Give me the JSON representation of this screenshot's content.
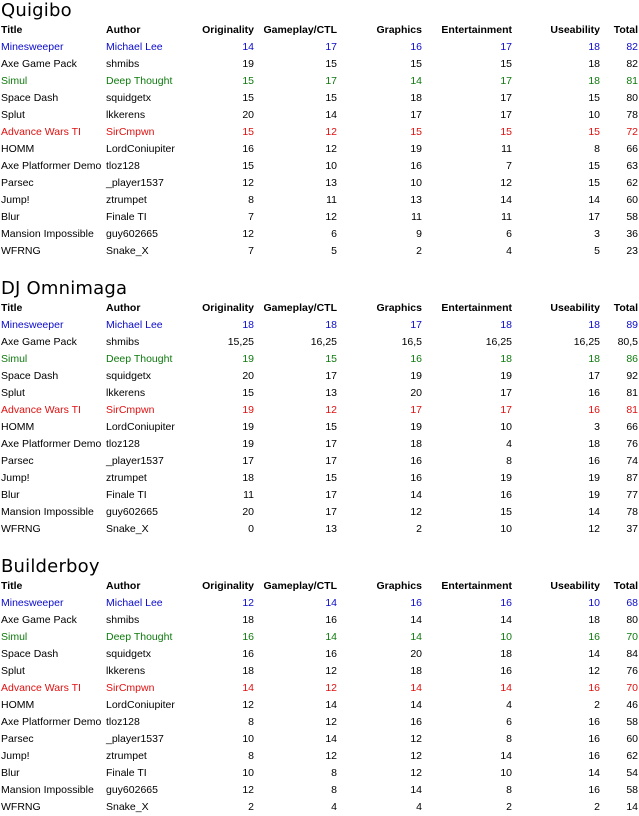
{
  "headers": {
    "title": "Title",
    "author": "Author",
    "originality": "Originality",
    "gameplay": "Gameplay/CTL",
    "graphics": "Graphics",
    "entertainment": "Entertainment",
    "useability": "Useability",
    "total": "Total"
  },
  "colors": {
    "blue": "#0a0acc",
    "green": "#0e7a0e",
    "red": "#e01010",
    "black": "#000000"
  },
  "sections": [
    {
      "judge": "Quigibo",
      "rows": [
        {
          "title": "Minesweeper",
          "author": "Michael Lee",
          "originality": "14",
          "gameplay": "17",
          "graphics": "16",
          "entertainment": "17",
          "useability": "18",
          "total": "82",
          "color": "blue"
        },
        {
          "title": "Axe Game Pack",
          "author": "shmibs",
          "originality": "19",
          "gameplay": "15",
          "graphics": "15",
          "entertainment": "15",
          "useability": "18",
          "total": "82",
          "color": "black"
        },
        {
          "title": "Simul",
          "author": "Deep Thought",
          "originality": "15",
          "gameplay": "17",
          "graphics": "14",
          "entertainment": "17",
          "useability": "18",
          "total": "81",
          "color": "green"
        },
        {
          "title": "Space Dash",
          "author": "squidgetx",
          "originality": "15",
          "gameplay": "15",
          "graphics": "18",
          "entertainment": "17",
          "useability": "15",
          "total": "80",
          "color": "black"
        },
        {
          "title": "Splut",
          "author": "lkkerens",
          "originality": "20",
          "gameplay": "14",
          "graphics": "17",
          "entertainment": "17",
          "useability": "10",
          "total": "78",
          "color": "black"
        },
        {
          "title": "Advance Wars TI",
          "author": "SirCmpwn",
          "originality": "15",
          "gameplay": "12",
          "graphics": "15",
          "entertainment": "15",
          "useability": "15",
          "total": "72",
          "color": "red"
        },
        {
          "title": "HOMM",
          "author": "LordConiupiter",
          "originality": "16",
          "gameplay": "12",
          "graphics": "19",
          "entertainment": "11",
          "useability": "8",
          "total": "66",
          "color": "black"
        },
        {
          "title": "Axe Platformer Demo",
          "author": "tloz128",
          "originality": "15",
          "gameplay": "10",
          "graphics": "16",
          "entertainment": "7",
          "useability": "15",
          "total": "63",
          "color": "black"
        },
        {
          "title": "Parsec",
          "author": "_player1537",
          "originality": "12",
          "gameplay": "13",
          "graphics": "10",
          "entertainment": "12",
          "useability": "15",
          "total": "62",
          "color": "black"
        },
        {
          "title": "Jump!",
          "author": "ztrumpet",
          "originality": "8",
          "gameplay": "11",
          "graphics": "13",
          "entertainment": "14",
          "useability": "14",
          "total": "60",
          "color": "black"
        },
        {
          "title": "Blur",
          "author": "Finale TI",
          "originality": "7",
          "gameplay": "12",
          "graphics": "11",
          "entertainment": "11",
          "useability": "17",
          "total": "58",
          "color": "black"
        },
        {
          "title": "Mansion Impossible",
          "author": "guy602665",
          "originality": "12",
          "gameplay": "6",
          "graphics": "9",
          "entertainment": "6",
          "useability": "3",
          "total": "36",
          "color": "black"
        },
        {
          "title": "WFRNG",
          "author": "Snake_X",
          "originality": "7",
          "gameplay": "5",
          "graphics": "2",
          "entertainment": "4",
          "useability": "5",
          "total": "23",
          "color": "black"
        }
      ]
    },
    {
      "judge": "DJ Omnimaga",
      "rows": [
        {
          "title": "Minesweeper",
          "author": "Michael Lee",
          "originality": "18",
          "gameplay": "18",
          "graphics": "17",
          "entertainment": "18",
          "useability": "18",
          "total": "89",
          "color": "blue"
        },
        {
          "title": "Axe Game Pack",
          "author": "shmibs",
          "originality": "15,25",
          "gameplay": "16,25",
          "graphics": "16,5",
          "entertainment": "16,25",
          "useability": "16,25",
          "total": "80,5",
          "color": "black"
        },
        {
          "title": "Simul",
          "author": "Deep Thought",
          "originality": "19",
          "gameplay": "15",
          "graphics": "16",
          "entertainment": "18",
          "useability": "18",
          "total": "86",
          "color": "green"
        },
        {
          "title": "Space Dash",
          "author": "squidgetx",
          "originality": "20",
          "gameplay": "17",
          "graphics": "19",
          "entertainment": "19",
          "useability": "17",
          "total": "92",
          "color": "black"
        },
        {
          "title": "Splut",
          "author": "lkkerens",
          "originality": "15",
          "gameplay": "13",
          "graphics": "20",
          "entertainment": "17",
          "useability": "16",
          "total": "81",
          "color": "black"
        },
        {
          "title": "Advance Wars TI",
          "author": "SirCmpwn",
          "originality": "19",
          "gameplay": "12",
          "graphics": "17",
          "entertainment": "17",
          "useability": "16",
          "total": "81",
          "color": "red"
        },
        {
          "title": "HOMM",
          "author": "LordConiupiter",
          "originality": "19",
          "gameplay": "15",
          "graphics": "19",
          "entertainment": "10",
          "useability": "3",
          "total": "66",
          "color": "black"
        },
        {
          "title": "Axe Platformer Demo",
          "author": "tloz128",
          "originality": "19",
          "gameplay": "17",
          "graphics": "18",
          "entertainment": "4",
          "useability": "18",
          "total": "76",
          "color": "black"
        },
        {
          "title": "Parsec",
          "author": "_player1537",
          "originality": "17",
          "gameplay": "17",
          "graphics": "16",
          "entertainment": "8",
          "useability": "16",
          "total": "74",
          "color": "black"
        },
        {
          "title": "Jump!",
          "author": "ztrumpet",
          "originality": "18",
          "gameplay": "15",
          "graphics": "16",
          "entertainment": "19",
          "useability": "19",
          "total": "87",
          "color": "black"
        },
        {
          "title": "Blur",
          "author": "Finale TI",
          "originality": "11",
          "gameplay": "17",
          "graphics": "14",
          "entertainment": "16",
          "useability": "19",
          "total": "77",
          "color": "black"
        },
        {
          "title": "Mansion Impossible",
          "author": "guy602665",
          "originality": "20",
          "gameplay": "17",
          "graphics": "12",
          "entertainment": "15",
          "useability": "14",
          "total": "78",
          "color": "black"
        },
        {
          "title": "WFRNG",
          "author": "Snake_X",
          "originality": "0",
          "gameplay": "13",
          "graphics": "2",
          "entertainment": "10",
          "useability": "12",
          "total": "37",
          "color": "black"
        }
      ]
    },
    {
      "judge": "Builderboy",
      "rows": [
        {
          "title": "Minesweeper",
          "author": "Michael Lee",
          "originality": "12",
          "gameplay": "14",
          "graphics": "16",
          "entertainment": "16",
          "useability": "10",
          "total": "68",
          "color": "blue"
        },
        {
          "title": "Axe Game Pack",
          "author": "shmibs",
          "originality": "18",
          "gameplay": "16",
          "graphics": "14",
          "entertainment": "14",
          "useability": "18",
          "total": "80",
          "color": "black"
        },
        {
          "title": "Simul",
          "author": "Deep Thought",
          "originality": "16",
          "gameplay": "14",
          "graphics": "14",
          "entertainment": "10",
          "useability": "16",
          "total": "70",
          "color": "green"
        },
        {
          "title": "Space Dash",
          "author": "squidgetx",
          "originality": "16",
          "gameplay": "16",
          "graphics": "20",
          "entertainment": "18",
          "useability": "14",
          "total": "84",
          "color": "black"
        },
        {
          "title": "Splut",
          "author": "lkkerens",
          "originality": "18",
          "gameplay": "12",
          "graphics": "18",
          "entertainment": "16",
          "useability": "12",
          "total": "76",
          "color": "black"
        },
        {
          "title": "Advance Wars TI",
          "author": "SirCmpwn",
          "originality": "14",
          "gameplay": "12",
          "graphics": "14",
          "entertainment": "14",
          "useability": "16",
          "total": "70",
          "color": "red"
        },
        {
          "title": "HOMM",
          "author": "LordConiupiter",
          "originality": "12",
          "gameplay": "14",
          "graphics": "14",
          "entertainment": "4",
          "useability": "2",
          "total": "46",
          "color": "black"
        },
        {
          "title": "Axe Platformer Demo",
          "author": "tloz128",
          "originality": "8",
          "gameplay": "12",
          "graphics": "16",
          "entertainment": "6",
          "useability": "16",
          "total": "58",
          "color": "black"
        },
        {
          "title": "Parsec",
          "author": "_player1537",
          "originality": "10",
          "gameplay": "14",
          "graphics": "12",
          "entertainment": "8",
          "useability": "16",
          "total": "60",
          "color": "black"
        },
        {
          "title": "Jump!",
          "author": "ztrumpet",
          "originality": "8",
          "gameplay": "12",
          "graphics": "12",
          "entertainment": "14",
          "useability": "16",
          "total": "62",
          "color": "black"
        },
        {
          "title": "Blur",
          "author": "Finale TI",
          "originality": "10",
          "gameplay": "8",
          "graphics": "12",
          "entertainment": "10",
          "useability": "14",
          "total": "54",
          "color": "black"
        },
        {
          "title": "Mansion Impossible",
          "author": "guy602665",
          "originality": "12",
          "gameplay": "8",
          "graphics": "14",
          "entertainment": "8",
          "useability": "16",
          "total": "58",
          "color": "black"
        },
        {
          "title": "WFRNG",
          "author": "Snake_X",
          "originality": "2",
          "gameplay": "4",
          "graphics": "4",
          "entertainment": "2",
          "useability": "2",
          "total": "14",
          "color": "black"
        }
      ]
    }
  ]
}
